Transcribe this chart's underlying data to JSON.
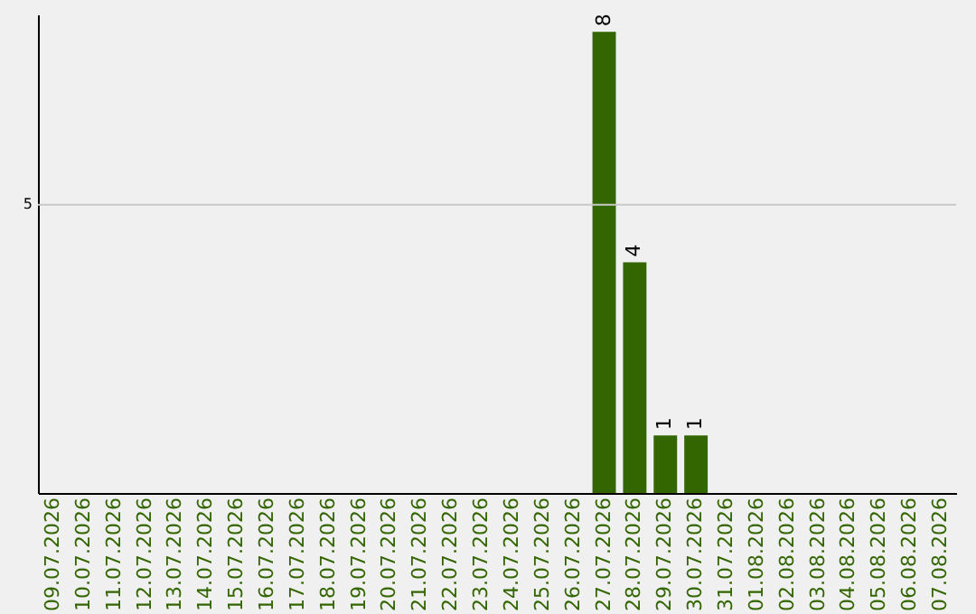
{
  "chart_data": {
    "type": "bar",
    "categories": [
      "09.07.2026",
      "10.07.2026",
      "11.07.2026",
      "12.07.2026",
      "13.07.2026",
      "14.07.2026",
      "15.07.2026",
      "16.07.2026",
      "17.07.2026",
      "18.07.2026",
      "19.07.2026",
      "20.07.2026",
      "21.07.2026",
      "22.07.2026",
      "23.07.2026",
      "24.07.2026",
      "25.07.2026",
      "26.07.2026",
      "27.07.2026",
      "28.07.2026",
      "29.07.2026",
      "30.07.2026",
      "31.07.2026",
      "01.08.2026",
      "02.08.2026",
      "03.08.2026",
      "04.08.2026",
      "05.08.2026",
      "06.08.2026",
      "07.08.2026"
    ],
    "values": [
      null,
      null,
      null,
      null,
      null,
      null,
      null,
      null,
      null,
      null,
      null,
      null,
      null,
      null,
      null,
      null,
      null,
      null,
      8,
      4,
      1,
      1,
      null,
      null,
      null,
      null,
      null,
      null,
      null,
      null
    ],
    "value_labels": [
      null,
      null,
      null,
      null,
      null,
      null,
      null,
      null,
      null,
      null,
      null,
      null,
      null,
      null,
      null,
      null,
      null,
      null,
      "8",
      "4",
      "1",
      "1",
      null,
      null,
      null,
      null,
      null,
      null,
      null,
      null
    ],
    "color": "#336600",
    "ylim": [
      0,
      8.3
    ],
    "ref_lines": [
      {
        "axis": "y",
        "value": 5,
        "label": "5",
        "color": "#c8c8c8"
      }
    ]
  }
}
